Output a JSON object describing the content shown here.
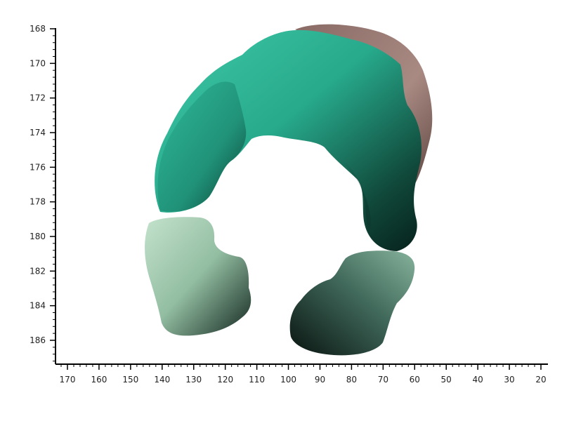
{
  "chart_data": {
    "type": "3d-surface-render",
    "x_axis": {
      "ticks": [
        170,
        160,
        150,
        140,
        130,
        120,
        110,
        100,
        90,
        80,
        70,
        60,
        50,
        40,
        30,
        20
      ],
      "range": [
        172,
        19
      ],
      "reversed": true
    },
    "y_axis": {
      "ticks": [
        168,
        170,
        172,
        174,
        176,
        178,
        180,
        182,
        184,
        186
      ],
      "range": [
        167.8,
        187.4
      ],
      "reversed": true
    },
    "colors": {
      "teal_surface": "#2fb99a",
      "teal_shadow": "#0b2a22",
      "mauve_surface": "#9a7b74",
      "pale_green_surface": "#a9cdb5",
      "dark_green_surface": "#4e7b66",
      "axis": "#000000"
    }
  }
}
